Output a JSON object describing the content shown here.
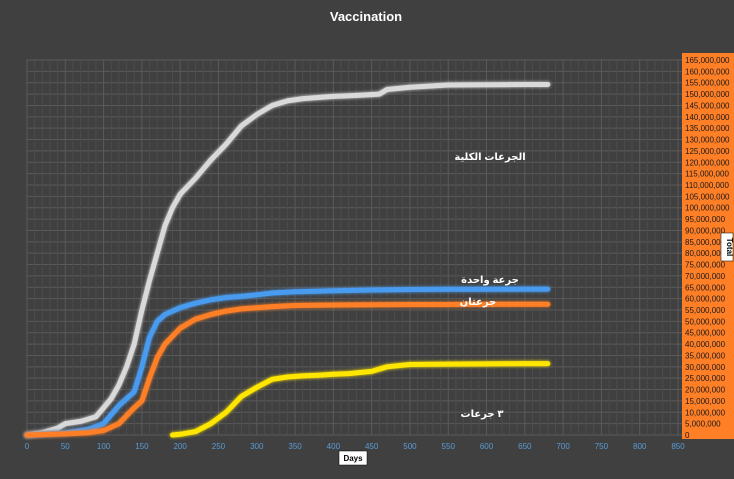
{
  "chart_data": {
    "type": "line",
    "title": "Vaccination",
    "xlabel": "Days",
    "ylabel": "Total",
    "xlim": [
      0,
      850
    ],
    "ylim": [
      0,
      165000000
    ],
    "x_ticks": [
      "0",
      "50",
      "100",
      "150",
      "200",
      "250",
      "300",
      "350",
      "400",
      "450",
      "500",
      "550",
      "600",
      "650",
      "700",
      "750",
      "800",
      "850"
    ],
    "y_ticks": [
      "0",
      "5,000,000",
      "10,000,000",
      "15,000,000",
      "20,000,000",
      "25,000,000",
      "30,000,000",
      "35,000,000",
      "40,000,000",
      "45,000,000",
      "50,000,000",
      "55,000,000",
      "60,000,000",
      "65,000,000",
      "70,000,000",
      "75,000,000",
      "80,000,000",
      "85,000,000",
      "90,000,000",
      "95,000,000",
      "100,000,000",
      "105,000,000",
      "110,000,000",
      "115,000,000",
      "120,000,000",
      "125,000,000",
      "130,000,000",
      "135,000,000",
      "140,000,000",
      "145,000,000",
      "150,000,000",
      "155,000,000",
      "160,000,000",
      "165,000,000"
    ],
    "grid": true,
    "series": [
      {
        "name": "الجرعات الكلية",
        "color": "#d9d9d9",
        "x": [
          0,
          20,
          40,
          50,
          70,
          90,
          100,
          110,
          120,
          130,
          140,
          150,
          160,
          170,
          180,
          190,
          200,
          220,
          240,
          260,
          280,
          300,
          320,
          340,
          360,
          380,
          400,
          420,
          440,
          460,
          470,
          500,
          550,
          600,
          650,
          680
        ],
        "y": [
          0,
          1000000,
          3000000,
          5000000,
          6000000,
          8000000,
          12000000,
          16000000,
          22000000,
          30000000,
          40000000,
          55000000,
          68000000,
          80000000,
          92000000,
          100000000,
          106000000,
          113000000,
          121000000,
          128000000,
          136000000,
          141000000,
          145000000,
          147000000,
          148000000,
          148500000,
          149000000,
          149300000,
          149600000,
          150000000,
          152000000,
          153000000,
          154000000,
          154100000,
          154200000,
          154200000
        ]
      },
      {
        "name": "جرعة واحدة",
        "color": "#4a9bef",
        "x": [
          0,
          50,
          80,
          100,
          120,
          140,
          150,
          160,
          170,
          180,
          200,
          220,
          240,
          260,
          280,
          300,
          320,
          350,
          400,
          450,
          500,
          550,
          600,
          650,
          680
        ],
        "y": [
          0,
          1000000,
          2500000,
          5000000,
          13000000,
          19000000,
          30000000,
          43000000,
          50000000,
          53000000,
          56000000,
          58000000,
          59500000,
          60500000,
          61000000,
          61700000,
          62500000,
          63000000,
          63500000,
          63800000,
          64000000,
          64100000,
          64100000,
          64200000,
          64200000
        ]
      },
      {
        "name": "جرعتان",
        "color": "#ff7f27",
        "x": [
          0,
          50,
          80,
          100,
          120,
          140,
          150,
          160,
          170,
          180,
          200,
          220,
          240,
          260,
          280,
          300,
          320,
          350,
          400,
          450,
          500,
          550,
          600,
          650,
          680
        ],
        "y": [
          0,
          500000,
          1000000,
          2000000,
          5000000,
          12000000,
          15000000,
          25000000,
          34000000,
          40000000,
          47000000,
          51000000,
          53000000,
          54500000,
          55500000,
          56000000,
          56500000,
          57000000,
          57200000,
          57300000,
          57400000,
          57400000,
          57500000,
          57500000,
          57500000
        ]
      },
      {
        "name": "٣ جرعات",
        "color": "#ffe600",
        "x": [
          190,
          200,
          220,
          240,
          260,
          280,
          300,
          320,
          340,
          360,
          380,
          400,
          420,
          450,
          470,
          500,
          550,
          600,
          650,
          680
        ],
        "y": [
          0,
          300000,
          1500000,
          5000000,
          10000000,
          17000000,
          21000000,
          24500000,
          25500000,
          26000000,
          26300000,
          26700000,
          27000000,
          28000000,
          30000000,
          31000000,
          31200000,
          31300000,
          31400000,
          31400000
        ]
      }
    ],
    "annotations": [
      "الجرعات الكلية",
      "جرعة واحدة",
      "جرعتان",
      "٣ جرعات"
    ]
  }
}
